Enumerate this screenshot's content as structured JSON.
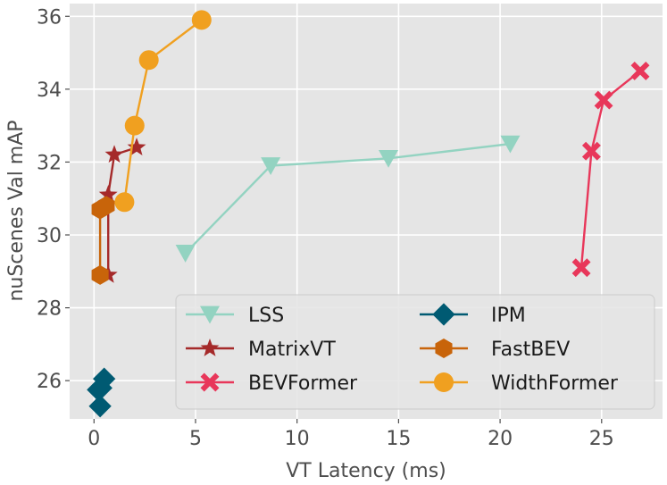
{
  "chart_data": {
    "type": "line",
    "title": "",
    "xlabel": "VT Latency (ms)",
    "ylabel": "nuScenes Val mAP",
    "xlim": [
      -1.2,
      28.0
    ],
    "ylim": [
      24.95,
      36.35
    ],
    "xticks": [
      0,
      5,
      10,
      15,
      20,
      25
    ],
    "yticks": [
      26,
      28,
      30,
      32,
      34,
      36
    ],
    "grid": true,
    "legend_position": "lower-right",
    "series": [
      {
        "name": "LSS",
        "color": "#93d3c1",
        "marker": "triangle-down",
        "points": [
          [
            4.5,
            29.5
          ],
          [
            8.7,
            31.9
          ],
          [
            14.5,
            32.1
          ],
          [
            20.5,
            32.5
          ]
        ]
      },
      {
        "name": "IPM",
        "color": "#005a72",
        "marker": "diamond",
        "points": [
          [
            0.3,
            25.3
          ],
          [
            0.35,
            25.8
          ],
          [
            0.5,
            26.05
          ],
          [
            0.2,
            25.75
          ]
        ]
      },
      {
        "name": "MatrixVT",
        "color": "#a52a2a",
        "marker": "star",
        "points": [
          [
            0.7,
            28.9
          ],
          [
            0.7,
            31.1
          ],
          [
            1.0,
            32.2
          ],
          [
            2.1,
            32.4
          ]
        ]
      },
      {
        "name": "FastBEV",
        "color": "#c8640a",
        "marker": "hexagon",
        "points": [
          [
            0.3,
            28.9
          ],
          [
            0.3,
            30.7
          ],
          [
            0.6,
            30.8
          ]
        ]
      },
      {
        "name": "BEVFormer",
        "color": "#e8375a",
        "marker": "x",
        "points": [
          [
            24.0,
            29.1
          ],
          [
            24.5,
            32.3
          ],
          [
            25.1,
            33.7
          ],
          [
            26.9,
            34.5
          ]
        ]
      },
      {
        "name": "WidthFormer",
        "color": "#f0a020",
        "marker": "circle",
        "points": [
          [
            1.5,
            30.9
          ],
          [
            2.0,
            33.0
          ],
          [
            2.7,
            34.8
          ],
          [
            5.3,
            35.9
          ]
        ]
      }
    ],
    "legend_order": [
      "LSS",
      "IPM",
      "MatrixVT",
      "FastBEV",
      "BEVFormer",
      "WidthFormer"
    ]
  }
}
